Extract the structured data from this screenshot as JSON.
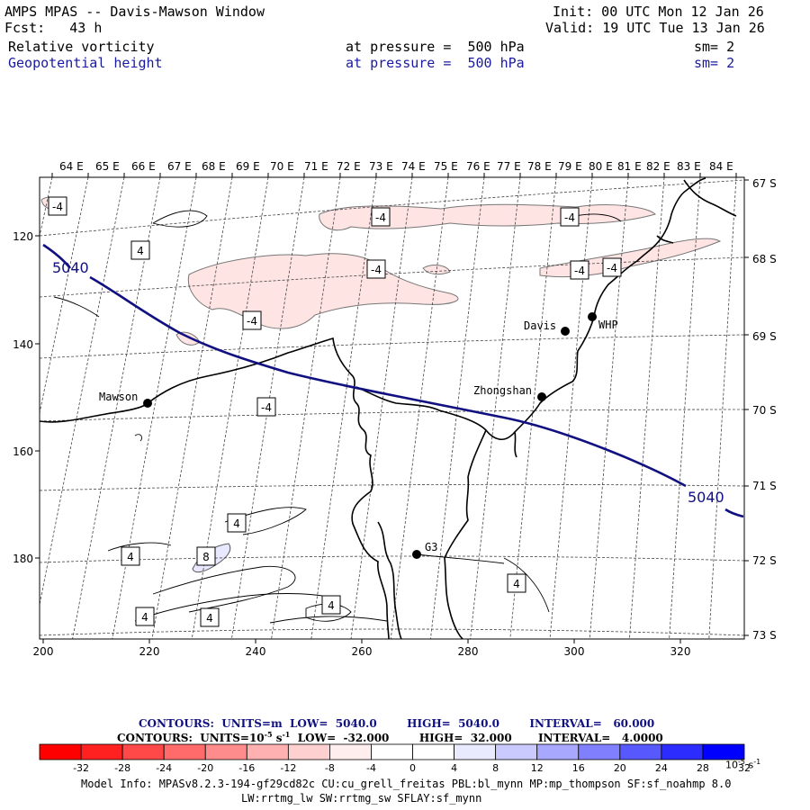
{
  "header": {
    "title": "AMPS MPAS -- Davis-Mawson Window",
    "fcst": "Fcst:   43 h",
    "init": "Init: 00 UTC Mon 12 Jan 26",
    "valid": "Valid: 19 UTC Tue 13 Jan 26",
    "field1": {
      "name": "Relative vorticity",
      "pressure": "at pressure =  500 hPa",
      "sm": "sm= 2"
    },
    "field2": {
      "name": "Geopotential height",
      "pressure": "at pressure =  500 hPa",
      "sm": "sm= 2"
    }
  },
  "axes": {
    "top_lon_labels": [
      "64 E",
      "65 E",
      "66 E",
      "67 E",
      "68 E",
      "69 E",
      "70 E",
      "71 E",
      "72 E",
      "73 E",
      "74 E",
      "75 E",
      "76 E",
      "77 E",
      "78 E",
      "79 E",
      "80 E",
      "81 E",
      "82 E",
      "83 E",
      "84 E"
    ],
    "right_lat_labels": [
      "67 S",
      "68 S",
      "69 S",
      "70 S",
      "71 S",
      "72 S",
      "73 S"
    ],
    "bottom_x_labels": [
      "200",
      "220",
      "240",
      "260",
      "280",
      "300",
      "320"
    ],
    "left_y_labels": [
      "120",
      "140",
      "160",
      "180"
    ]
  },
  "stations": [
    {
      "name": "Mawson"
    },
    {
      "name": "Davis"
    },
    {
      "name": "WHP"
    },
    {
      "name": "Zhongshan"
    },
    {
      "name": "G3"
    }
  ],
  "height_contour": {
    "value": 5040,
    "label": "5040"
  },
  "vorticity_labels": [
    "-4",
    "-4",
    "-4",
    "-4",
    "-4",
    "-4",
    "-4",
    "-4",
    "4",
    "4",
    "4",
    "4",
    "4",
    "4",
    "4",
    "8"
  ],
  "contour_info": {
    "line1": "CONTOURS:  UNITS=m  LOW=  5040.0        HIGH=  5040.0        INTERVAL=   60.000",
    "line2_a": "CONTOURS:  UNITS=10",
    "line2_exp": "-5",
    "line2_b": " s",
    "line2_exp2": "-1",
    "line2_c": "  LOW=  -32.000        HIGH=  32.000       INTERVAL=   4.0000"
  },
  "colorbar": {
    "ticks": [
      "-32",
      "-28",
      "-24",
      "-20",
      "-16",
      "-12",
      "-8",
      "-4",
      "0",
      "4",
      "8",
      "12",
      "16",
      "20",
      "24",
      "28",
      "32"
    ],
    "colors": [
      "#ff0000",
      "#ff2020",
      "#ff4848",
      "#ff6a6a",
      "#ff8c8c",
      "#ffb0b0",
      "#ffd0d0",
      "#ffeeee",
      "#ffffff",
      "#ffffff",
      "#eaeaff",
      "#cacaff",
      "#a8a8ff",
      "#8080ff",
      "#5858ff",
      "#2c2cff",
      "#0000ff"
    ],
    "unit_base": "10",
    "unit_exp": "-5",
    "unit_s": " s",
    "unit_exp2": "-1"
  },
  "model_info": {
    "line1": "Model Info: MPASv8.2.3-194-gf29cd82c CU:cu_grell_freitas PBL:bl_mynn MP:mp_thompson SF:sf_noahmp 8.0",
    "line2": "LW:rrtmg_lw SW:rrtmg_sw SFLAY:sf_mynn"
  }
}
